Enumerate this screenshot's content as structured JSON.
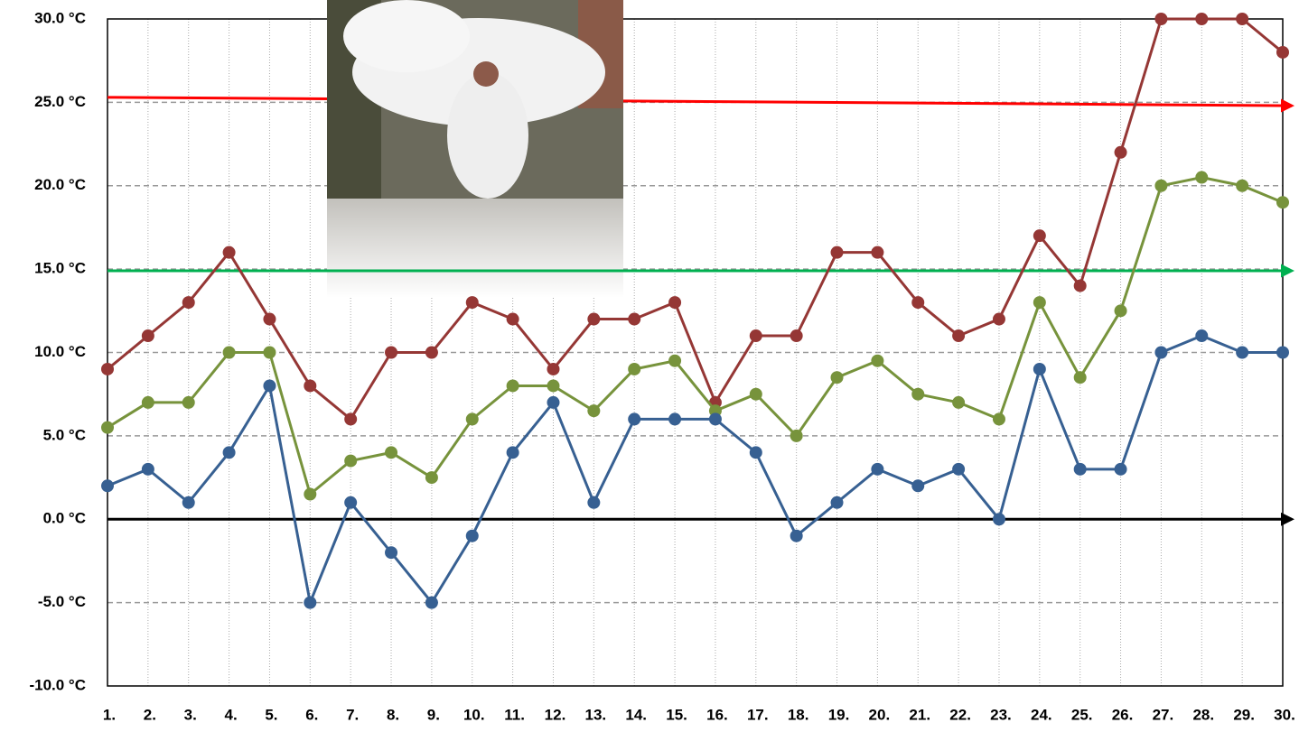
{
  "chart_data": {
    "type": "line",
    "categories": [
      "1.",
      "2.",
      "3.",
      "4.",
      "5.",
      "6.",
      "7.",
      "8.",
      "9.",
      "10.",
      "11.",
      "12.",
      "13.",
      "14.",
      "15.",
      "16.",
      "17.",
      "18.",
      "19.",
      "20.",
      "21.",
      "22.",
      "23.",
      "24.",
      "25.",
      "26.",
      "27.",
      "28.",
      "29.",
      "30."
    ],
    "series": [
      {
        "color": "#953735",
        "values": [
          9,
          11,
          13,
          16,
          12,
          8,
          6,
          10,
          10,
          13,
          12,
          9,
          12,
          12,
          13,
          7,
          11,
          11,
          16,
          16,
          13,
          11,
          12,
          17,
          14,
          22,
          30,
          30,
          30,
          28
        ]
      },
      {
        "color": "#77933c",
        "values": [
          5.5,
          7,
          7,
          10,
          10,
          1.5,
          3.5,
          4,
          2.5,
          6,
          8,
          8,
          6.5,
          9,
          9.5,
          6.5,
          7.5,
          5,
          8.5,
          9.5,
          7.5,
          7,
          6,
          13,
          8.5,
          12.5,
          20,
          20.5,
          20,
          19
        ]
      },
      {
        "color": "#376092",
        "values": [
          2,
          3,
          1,
          4,
          8,
          -5,
          1,
          -2,
          -5,
          -1,
          4,
          7,
          1,
          6,
          6,
          6,
          4,
          -1,
          1,
          3,
          2,
          3,
          0,
          9,
          3,
          3,
          10,
          11,
          10,
          10
        ]
      }
    ],
    "reference_lines": [
      {
        "color": "#ff0000",
        "values": [
          25.3,
          24.8
        ]
      },
      {
        "color": "#00b050",
        "values": [
          14.9,
          14.9
        ]
      },
      {
        "color": "#000000",
        "values": [
          0,
          0
        ]
      }
    ],
    "ylim": [
      -10,
      30
    ],
    "yticks": [
      {
        "value": -10,
        "label": "-10.0 °C"
      },
      {
        "value": -5,
        "label": "-5.0 °C"
      },
      {
        "value": 0,
        "label": "0.0 °C"
      },
      {
        "value": 5,
        "label": "5.0 °C"
      },
      {
        "value": 10,
        "label": "10.0 °C"
      },
      {
        "value": 15,
        "label": "15.0 °C"
      },
      {
        "value": 20,
        "label": "20.0 °C"
      },
      {
        "value": 25,
        "label": "25.0 °C"
      },
      {
        "value": 30,
        "label": "30.0 °C"
      }
    ],
    "grid": true
  }
}
